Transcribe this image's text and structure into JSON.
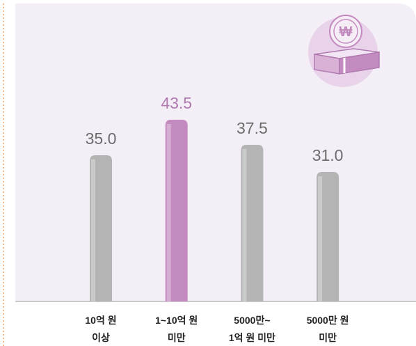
{
  "chart_data": {
    "type": "bar",
    "categories": [
      [
        "10억 원",
        "이상"
      ],
      [
        "1~10억 원",
        "미만"
      ],
      [
        "5000만~",
        "1억 원 미만"
      ],
      [
        "5000만 원",
        "미만"
      ]
    ],
    "values": [
      35.0,
      43.5,
      37.5,
      31.0
    ],
    "value_labels": [
      "35.0",
      "43.5",
      "37.5",
      "31.0"
    ],
    "colors": [
      "#b4b4b4",
      "#c48bc0",
      "#b4b4b4",
      "#b4b4b4"
    ],
    "ylim": [
      0,
      70
    ]
  }
}
